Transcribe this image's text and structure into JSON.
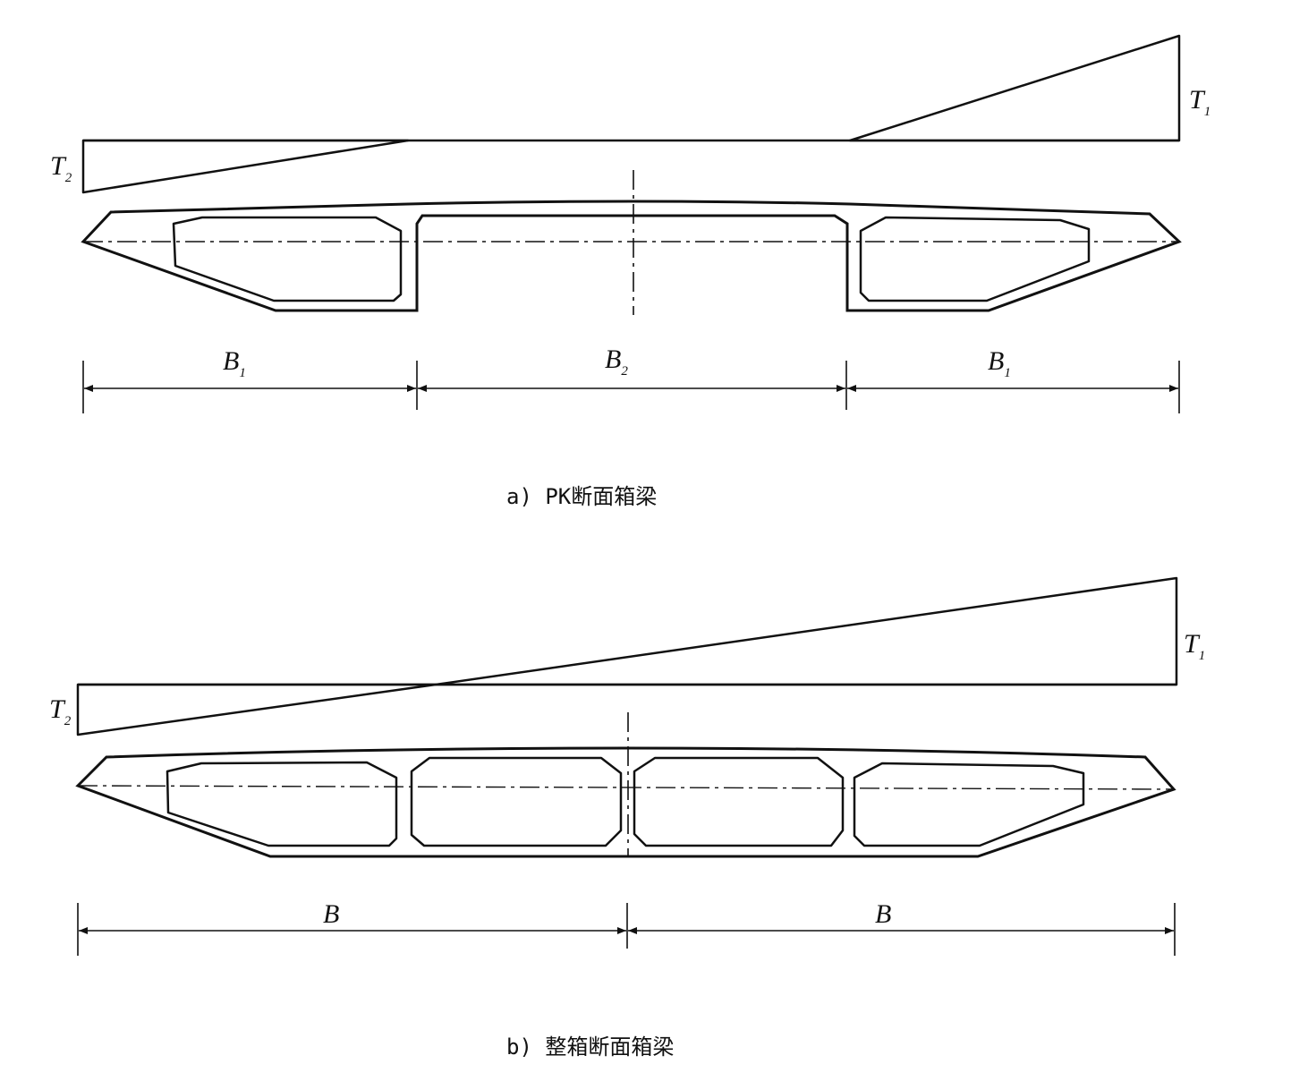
{
  "figure_a": {
    "caption": "a) PK断面箱梁",
    "torque_top": {
      "symbol": "T",
      "subscript": "1"
    },
    "torque_bottom": {
      "symbol": "T",
      "subscript": "2"
    },
    "dimensions": [
      {
        "symbol": "B",
        "subscript": "1"
      },
      {
        "symbol": "B",
        "subscript": "2"
      },
      {
        "symbol": "B",
        "subscript": "1"
      }
    ]
  },
  "figure_b": {
    "caption": "b) 整箱断面箱梁",
    "torque_top": {
      "symbol": "T",
      "subscript": "1"
    },
    "torque_bottom": {
      "symbol": "T",
      "subscript": "2"
    },
    "dimensions": [
      {
        "symbol": "B",
        "subscript": ""
      },
      {
        "symbol": "B",
        "subscript": ""
      }
    ]
  }
}
